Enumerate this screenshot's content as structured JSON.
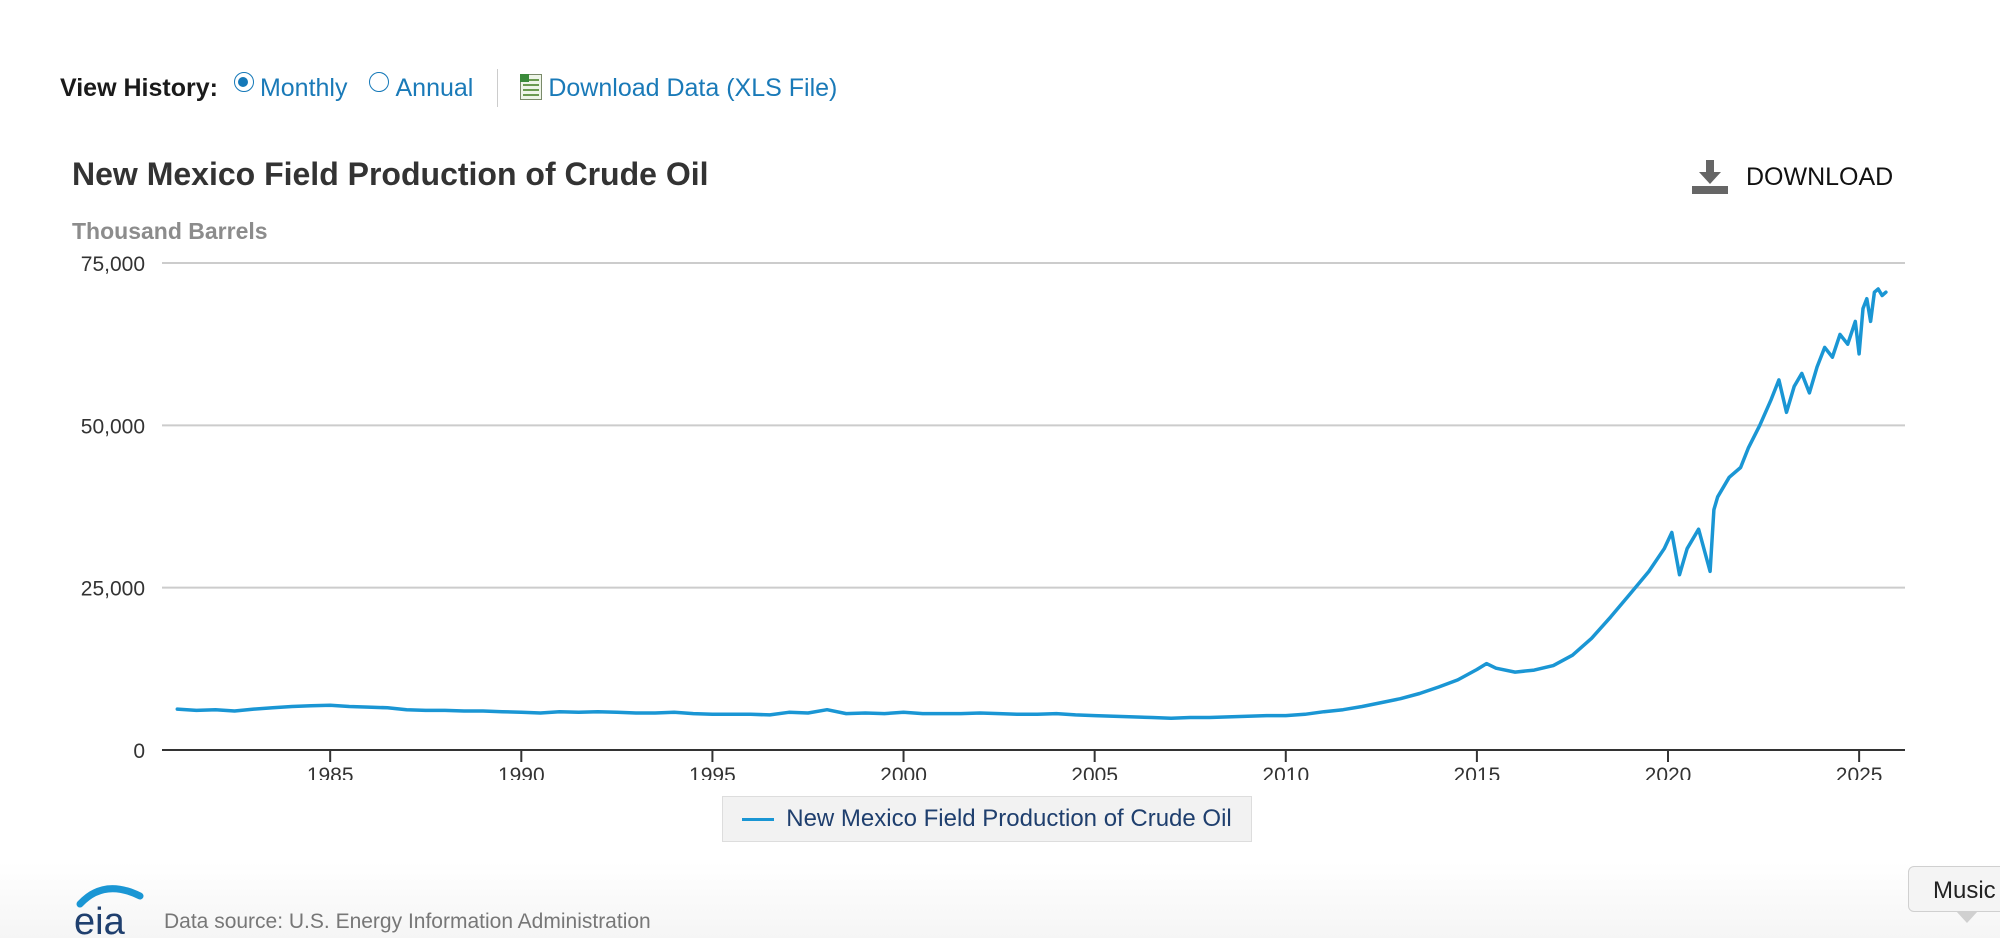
{
  "history": {
    "label": "View History:",
    "monthly": "Monthly",
    "annual": "Annual",
    "download_xls": "Download Data (XLS File)"
  },
  "download_button": "DOWNLOAD",
  "legend_label": "New Mexico Field Production of Crude Oil",
  "footer": {
    "logo_text": "eia",
    "source": "Data source: U.S. Energy Information Administration"
  },
  "tooltip": "Music",
  "chart_data": {
    "type": "line",
    "title": "New Mexico Field Production of Crude Oil",
    "ylabel": "Thousand Barrels",
    "xlabel": "",
    "ylim": [
      0,
      75000
    ],
    "xlim": [
      1980.6,
      2026.2
    ],
    "yticks": [
      0,
      25000,
      50000,
      75000
    ],
    "ytick_labels": [
      "0",
      "25,000",
      "50,000",
      "75,000"
    ],
    "xticks": [
      1985,
      1990,
      1995,
      2000,
      2005,
      2010,
      2015,
      2020,
      2025
    ],
    "xtick_labels": [
      "1985",
      "1990",
      "1995",
      "2000",
      "2005",
      "2010",
      "2015",
      "2020",
      "2025"
    ],
    "grid": true,
    "color": "#1a96d4",
    "series": [
      {
        "name": "New Mexico Field Production of Crude Oil",
        "x": [
          1981.0,
          1981.5,
          1982.0,
          1982.5,
          1983.0,
          1983.5,
          1984.0,
          1984.5,
          1985.0,
          1985.5,
          1986.0,
          1986.5,
          1987.0,
          1987.5,
          1988.0,
          1988.5,
          1989.0,
          1989.5,
          1990.0,
          1990.5,
          1991.0,
          1991.5,
          1992.0,
          1992.5,
          1993.0,
          1993.5,
          1994.0,
          1994.5,
          1995.0,
          1995.5,
          1996.0,
          1996.5,
          1997.0,
          1997.5,
          1998.0,
          1998.5,
          1999.0,
          1999.5,
          2000.0,
          2000.5,
          2001.0,
          2001.5,
          2002.0,
          2002.5,
          2003.0,
          2003.5,
          2004.0,
          2004.5,
          2005.0,
          2005.5,
          2006.0,
          2006.5,
          2007.0,
          2007.5,
          2008.0,
          2008.5,
          2009.0,
          2009.5,
          2010.0,
          2010.5,
          2011.0,
          2011.5,
          2012.0,
          2012.5,
          2013.0,
          2013.5,
          2014.0,
          2014.5,
          2015.0,
          2015.25,
          2015.5,
          2016.0,
          2016.5,
          2017.0,
          2017.5,
          2018.0,
          2018.5,
          2019.0,
          2019.5,
          2019.9,
          2020.1,
          2020.3,
          2020.5,
          2020.8,
          2021.1,
          2021.2,
          2021.3,
          2021.6,
          2021.9,
          2022.1,
          2022.4,
          2022.7,
          2022.9,
          2023.1,
          2023.3,
          2023.5,
          2023.7,
          2023.9,
          2024.1,
          2024.3,
          2024.5,
          2024.7,
          2024.9,
          2025.0,
          2025.1,
          2025.2,
          2025.3,
          2025.4,
          2025.5,
          2025.6,
          2025.7
        ],
        "values": [
          6300,
          6100,
          6200,
          6000,
          6300,
          6500,
          6700,
          6800,
          6900,
          6700,
          6600,
          6500,
          6200,
          6100,
          6100,
          6000,
          6000,
          5900,
          5800,
          5700,
          5900,
          5800,
          5900,
          5800,
          5700,
          5700,
          5800,
          5600,
          5500,
          5500,
          5500,
          5400,
          5800,
          5700,
          6200,
          5600,
          5700,
          5600,
          5800,
          5600,
          5600,
          5600,
          5700,
          5600,
          5500,
          5500,
          5600,
          5400,
          5300,
          5200,
          5100,
          5000,
          4900,
          5000,
          5000,
          5100,
          5200,
          5300,
          5300,
          5500,
          5900,
          6200,
          6700,
          7300,
          7900,
          8700,
          9700,
          10800,
          12400,
          13300,
          12600,
          12000,
          12300,
          13000,
          14600,
          17200,
          20500,
          24000,
          27500,
          31000,
          33500,
          27000,
          31000,
          34000,
          27500,
          37000,
          39000,
          42000,
          43500,
          46500,
          50000,
          54000,
          57000,
          52000,
          56000,
          58000,
          55000,
          59000,
          62000,
          60500,
          64000,
          62500,
          66000,
          61000,
          68000,
          69500,
          66000,
          70500,
          71000,
          70000,
          70500
        ]
      }
    ]
  }
}
